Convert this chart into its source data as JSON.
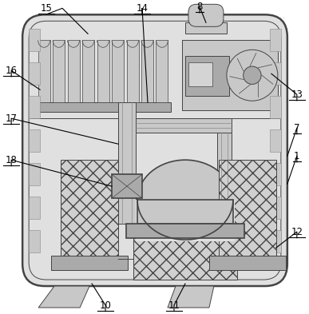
{
  "fig_width": 3.87,
  "fig_height": 3.93,
  "dpi": 100,
  "bg_color": "#ffffff",
  "lc": "#444444",
  "lc2": "#888888",
  "gray_light": "#e0e0e0",
  "gray_mid": "#c8c8c8",
  "gray_dark": "#aaaaaa",
  "gray_fill": "#d4d4d4",
  "white": "#f5f5f5"
}
